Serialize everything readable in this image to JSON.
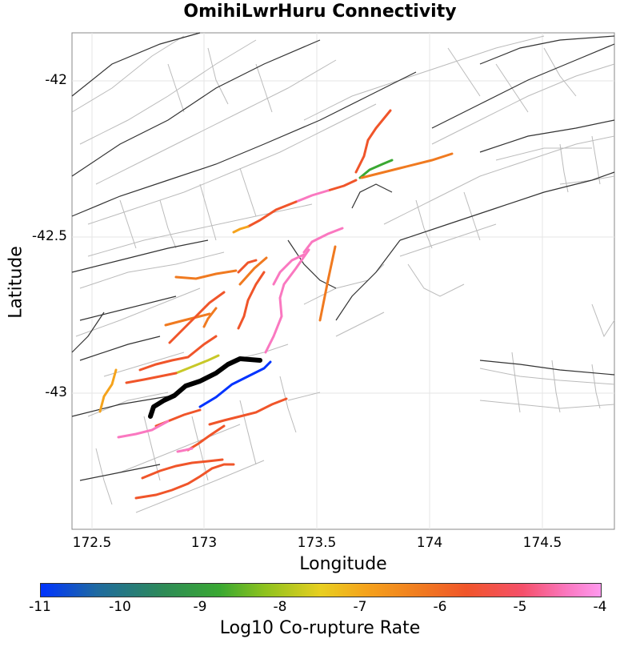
{
  "title": "OmihiLwrHuru Connectivity",
  "x_axis": {
    "label": "Longitude",
    "ticks": [
      "172.5",
      "173",
      "173.5",
      "174",
      "174.5"
    ]
  },
  "y_axis": {
    "label": "Latitude",
    "ticks": [
      "-42",
      "-42.5",
      "-43"
    ]
  },
  "colorbar": {
    "label": "Log10 Co-rupture Rate",
    "ticks": [
      "-11",
      "-10",
      "-9",
      "-8",
      "-7",
      "-6",
      "-5",
      "-4"
    ],
    "colors": [
      "#0033ff",
      "#2e8b57",
      "#3aa832",
      "#e8cf20",
      "#f5a31c",
      "#f07a20",
      "#f0552a",
      "#fa78c0"
    ]
  },
  "colors": {
    "grid": "#e6e6e6",
    "fault_trace": "#333333",
    "fault_outline": "#bbbbbb",
    "source": "#000000"
  }
}
